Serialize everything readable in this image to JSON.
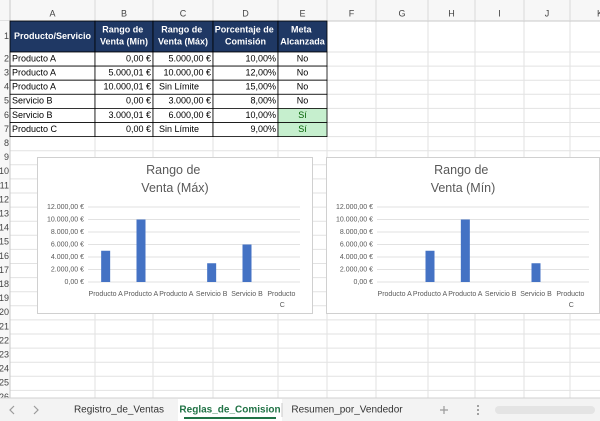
{
  "column_headers": [
    "A",
    "B",
    "C",
    "D",
    "E",
    "F",
    "G",
    "H",
    "I",
    "J",
    "K"
  ],
  "row_numbers": [
    1,
    2,
    3,
    4,
    5,
    6,
    7,
    8,
    9,
    10,
    11,
    12,
    13,
    14,
    15,
    16,
    17,
    18,
    19,
    20,
    21,
    22,
    23,
    24,
    25,
    26
  ],
  "table": {
    "header": [
      "Producto/Servicio",
      "Rango de Venta (Mín)",
      "Rango de Venta (Máx)",
      "Porcentaje de Comisión",
      "Meta Alcanzada"
    ],
    "rows": [
      [
        "Producto A",
        "0,00 €",
        "5.000,00 €",
        "10,00%",
        "No"
      ],
      [
        "Producto A",
        "5.000,01 €",
        "10.000,00 €",
        "12,00%",
        "No"
      ],
      [
        "Producto A",
        "10.000,01 €",
        "Sin Límite",
        "15,00%",
        "No"
      ],
      [
        "Servicio B",
        "0,00 €",
        "3.000,00 €",
        "8,00%",
        "No"
      ],
      [
        "Servicio B",
        "3.000,01 €",
        "6.000,00 €",
        "10,00%",
        "Sí"
      ],
      [
        "Producto C",
        "0,00 €",
        "Sin Límite",
        "9,00%",
        "Sí"
      ]
    ],
    "highlighted_cells": [
      [
        4,
        4
      ],
      [
        5,
        4
      ]
    ],
    "highlight_color": "#c6efce",
    "header_color": "#1f3864"
  },
  "chart_data": [
    {
      "type": "bar",
      "title": "Rango de Venta (Máx)",
      "categories": [
        "Producto A",
        "Producto A",
        "Producto A",
        "Servicio B",
        "Servicio B",
        "Producto C"
      ],
      "values": [
        5000,
        10000,
        null,
        3000,
        6000,
        null
      ],
      "color": "#4472c4",
      "ylim": [
        0,
        12000
      ],
      "yticks": [
        {
          "value": 0,
          "label": "0,00 €"
        },
        {
          "value": 2000,
          "label": "2.000,00 €"
        },
        {
          "value": 4000,
          "label": "4.000,00 €"
        },
        {
          "value": 6000,
          "label": "6.000,00 €"
        },
        {
          "value": 8000,
          "label": "8.000,00 €"
        },
        {
          "value": 10000,
          "label": "10.000,00 €"
        },
        {
          "value": 12000,
          "label": "12.000,00 €"
        }
      ],
      "grid": true
    },
    {
      "type": "bar",
      "title": "Rango de Venta (Mín)",
      "categories": [
        "Producto A",
        "Producto A",
        "Producto A",
        "Servicio B",
        "Servicio B",
        "Producto C"
      ],
      "values": [
        0,
        5000.01,
        10000.01,
        0,
        3000.01,
        0
      ],
      "color": "#4472c4",
      "ylim": [
        0,
        12000
      ],
      "yticks": [
        {
          "value": 0,
          "label": "0,00 €"
        },
        {
          "value": 2000,
          "label": "2.000,00 €"
        },
        {
          "value": 4000,
          "label": "4.000,00 €"
        },
        {
          "value": 6000,
          "label": "6.000,00 €"
        },
        {
          "value": 8000,
          "label": "8.000,00 €"
        },
        {
          "value": 10000,
          "label": "10.000,00 €"
        },
        {
          "value": 12000,
          "label": "12.000,00 €"
        }
      ],
      "grid": true
    }
  ],
  "sheet_tabs": [
    "Registro_de_Ventas",
    "Reglas_de_Comision",
    "Resumen_por_Vendedor"
  ],
  "active_tab": 1
}
